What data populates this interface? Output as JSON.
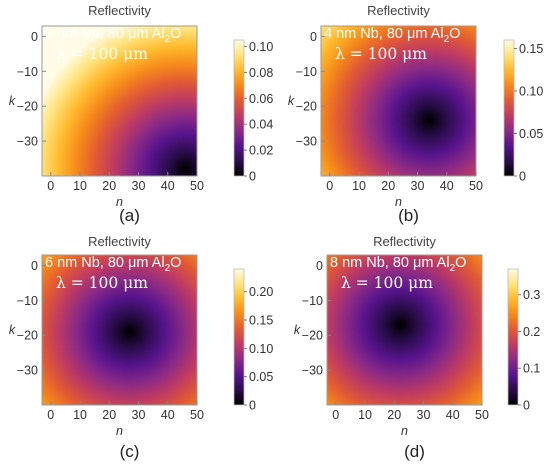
{
  "colormap": [
    "#000000",
    "#2b0d4d",
    "#57148c",
    "#8a2a86",
    "#bf3b62",
    "#e25a33",
    "#f58a1a",
    "#ffba2e",
    "#ffe37e",
    "#fffbe6"
  ],
  "chart_data": [
    {
      "type": "heatmap",
      "panel_label": "(a)",
      "title": "Reflectivity",
      "xlabel": "n",
      "ylabel": "k",
      "xlim": [
        -3,
        50
      ],
      "ylim": [
        -40,
        3
      ],
      "x_ticks": [
        "0",
        "10",
        "20",
        "30",
        "40",
        "50"
      ],
      "y_ticks": [
        "0",
        "−10",
        "−20",
        "−30"
      ],
      "colorbar_range": [
        0,
        0.105
      ],
      "colorbar_ticks": [
        "0",
        "0.02",
        "0.04",
        "0.06",
        "0.08",
        "0.10"
      ],
      "annotation": [
        "2 nm Nb, 80 μm Al",
        "2",
        "O",
        "λ = 100 μm"
      ],
      "min_at": {
        "n": 46,
        "k": -38
      },
      "max_value": 0.105
    },
    {
      "type": "heatmap",
      "panel_label": "(b)",
      "title": "Reflectivity",
      "xlabel": "n",
      "ylabel": "k",
      "xlim": [
        -3,
        50
      ],
      "ylim": [
        -40,
        3
      ],
      "x_ticks": [
        "0",
        "10",
        "20",
        "30",
        "40",
        "50"
      ],
      "y_ticks": [
        "0",
        "−10",
        "−20",
        "−30"
      ],
      "colorbar_range": [
        0,
        0.16
      ],
      "colorbar_ticks": [
        "0",
        "0.05",
        "0.10",
        "0.15"
      ],
      "annotation": [
        "4 nm Nb, 80 μm Al",
        "2",
        "O",
        "λ = 100 μm"
      ],
      "min_at": {
        "n": 34,
        "k": -24
      },
      "max_value": 0.16
    },
    {
      "type": "heatmap",
      "panel_label": "(c)",
      "title": "Reflectivity",
      "xlabel": "n",
      "ylabel": "k",
      "xlim": [
        -3,
        50
      ],
      "ylim": [
        -40,
        3
      ],
      "x_ticks": [
        "0",
        "10",
        "20",
        "30",
        "40",
        "50"
      ],
      "y_ticks": [
        "0",
        "−10",
        "−20",
        "−30"
      ],
      "colorbar_range": [
        0,
        0.24
      ],
      "colorbar_ticks": [
        "0",
        "0.05",
        "0.10",
        "0.15",
        "0.20"
      ],
      "annotation": [
        "6 nm Nb, 80 μm Al",
        "2",
        "O",
        "λ = 100 μm"
      ],
      "min_at": {
        "n": 27,
        "k": -19
      },
      "max_value": 0.24
    },
    {
      "type": "heatmap",
      "panel_label": "(d)",
      "title": "Reflectivity",
      "xlabel": "n",
      "ylabel": "k",
      "xlim": [
        -3,
        50
      ],
      "ylim": [
        -40,
        3
      ],
      "x_ticks": [
        "0",
        "10",
        "20",
        "30",
        "40",
        "50"
      ],
      "y_ticks": [
        "0",
        "−10",
        "−20",
        "−30"
      ],
      "colorbar_range": [
        0,
        0.37
      ],
      "colorbar_ticks": [
        "0",
        "0.1",
        "0.2",
        "0.3"
      ],
      "annotation": [
        "8 nm Nb, 80 μm Al",
        "2",
        "O",
        "λ = 100 μm"
      ],
      "min_at": {
        "n": 22,
        "k": -17
      },
      "max_value": 0.37
    }
  ]
}
